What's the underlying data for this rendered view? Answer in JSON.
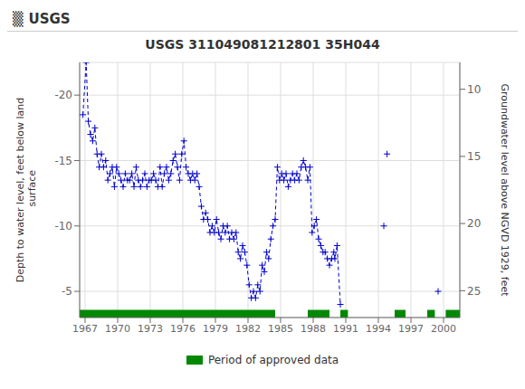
{
  "chart_data": {
    "type": "line",
    "title": "USGS 311049081212801 35H044",
    "annotations": [
      "▒",
      "USGS"
    ],
    "y_label": "Depth to water level, feet below land\n surface",
    "y2_label": "Groundwater level above NGVD 1929, feet",
    "xlim": [
      1966.5,
      2001.5
    ],
    "xticks": [
      1967,
      1970,
      1973,
      1976,
      1979,
      1982,
      1985,
      1988,
      1991,
      1994,
      1997,
      2000
    ],
    "ylim": [
      -3.0,
      -22.5
    ],
    "yticks": [
      -20,
      -15,
      -10,
      -5
    ],
    "y2lim": [
      27,
      8
    ],
    "y2ticks": [
      10,
      15,
      20,
      25
    ],
    "grid": true,
    "legend": "bottom",
    "series": [
      {
        "type": "line",
        "color": "#0000CC",
        "line_style": "dashed",
        "marker": "plus",
        "x": [
          1966.8,
          1967.1,
          1967.3,
          1967.5,
          1967.7,
          1967.9,
          1968.1,
          1968.3,
          1968.5,
          1968.7,
          1968.9,
          1969.1,
          1969.3,
          1969.5,
          1969.7,
          1969.9,
          1970.1,
          1970.3,
          1970.5,
          1970.7,
          1970.9,
          1971.1,
          1971.3,
          1971.5,
          1971.7,
          1971.9,
          1972.1,
          1972.3,
          1972.5,
          1972.7,
          1972.9,
          1973.1,
          1973.3,
          1973.5,
          1973.7,
          1973.9,
          1974.1,
          1974.3,
          1974.5,
          1974.7,
          1974.9,
          1975.1,
          1975.3,
          1975.5,
          1975.7,
          1975.9,
          1976.1,
          1976.3,
          1976.5,
          1976.7,
          1976.9,
          1977.1,
          1977.3,
          1977.5,
          1977.7,
          1977.9,
          1978.1,
          1978.3,
          1978.5,
          1978.7,
          1978.9,
          1979.1,
          1979.3,
          1979.5,
          1979.7,
          1979.9,
          1980.1,
          1980.3,
          1980.5,
          1980.7,
          1980.9,
          1981.1,
          1981.3,
          1981.5,
          1981.7,
          1981.9,
          1982.1,
          1982.3,
          1982.5,
          1982.7,
          1982.9,
          1983.1,
          1983.3,
          1983.5,
          1983.7,
          1983.9,
          1984.1,
          1984.3,
          1984.5,
          1984.7,
          1984.9,
          1985.1,
          1985.3,
          1985.5,
          1985.7,
          1985.9,
          1986.1,
          1986.3,
          1986.5,
          1986.7,
          1986.9,
          1987.1,
          1987.3,
          1987.5,
          1987.7,
          1987.9,
          1988.1,
          1988.3,
          1988.5,
          1988.7,
          1988.9,
          1989.1,
          1989.3,
          1989.5,
          1989.7,
          1989.9,
          1990.0,
          1990.2,
          1990.5
        ],
        "values": [
          -18.5,
          -22.5,
          -18.0,
          -17.0,
          -16.5,
          -17.5,
          -15.5,
          -14.5,
          -15.5,
          -14.5,
          -15.0,
          -13.5,
          -14.0,
          -14.5,
          -13.0,
          -14.5,
          -14.0,
          -13.5,
          -13.0,
          -14.0,
          -13.5,
          -13.5,
          -14.0,
          -13.0,
          -14.5,
          -13.5,
          -13.0,
          -13.5,
          -14.0,
          -13.0,
          -13.5,
          -13.5,
          -14.0,
          -13.5,
          -13.0,
          -14.5,
          -13.0,
          -14.0,
          -14.5,
          -13.5,
          -14.0,
          -15.0,
          -15.5,
          -14.5,
          -13.5,
          -15.5,
          -16.5,
          -14.5,
          -14.0,
          -13.5,
          -14.0,
          -13.5,
          -14.0,
          -13.0,
          -11.5,
          -10.5,
          -11.0,
          -10.5,
          -9.5,
          -10.0,
          -9.5,
          -10.5,
          -9.5,
          -9.0,
          -10.0,
          -9.5,
          -10.0,
          -9.0,
          -9.5,
          -9.0,
          -9.5,
          -8.0,
          -7.5,
          -8.5,
          -8.0,
          -7.0,
          -5.5,
          -4.5,
          -5.0,
          -4.5,
          -5.5,
          -5.0,
          -7.0,
          -6.5,
          -8.0,
          -7.5,
          -9.0,
          -10.0,
          -10.5,
          -14.5,
          -13.5,
          -14.0,
          -13.5,
          -14.0,
          -13.0,
          -13.5,
          -14.0,
          -13.5,
          -14.0,
          -13.5,
          -14.5,
          -15.0,
          -14.5,
          -13.5,
          -14.5,
          -9.5,
          -10.0,
          -10.5,
          -9.0,
          -8.5,
          -8.0,
          -8.0,
          -7.5,
          -7.0,
          -7.5,
          -8.0,
          -7.5,
          -8.5,
          -4.0
        ]
      },
      {
        "type": "scatter",
        "color": "#0000CC",
        "marker": "plus",
        "x": [
          1994.5,
          1994.8,
          1999.5
        ],
        "values": [
          -10.0,
          -15.5,
          -5.0
        ]
      },
      {
        "type": "span",
        "name": "Period of approved data",
        "color": "#008800",
        "segments": [
          [
            1966.5,
            1984.5
          ],
          [
            1987.5,
            1989.5
          ],
          [
            1990.5,
            1991.2
          ],
          [
            1995.5,
            1996.5
          ],
          [
            1998.5,
            1999.2
          ],
          [
            2000.2,
            2001.5
          ]
        ]
      }
    ]
  }
}
